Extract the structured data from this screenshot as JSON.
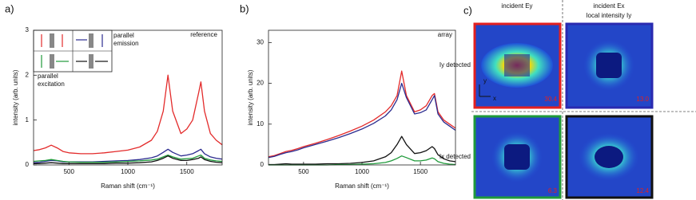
{
  "chart_data": [
    {
      "type": "line",
      "panel_label": "a)",
      "xlabel": "Raman shift (cm⁻¹)",
      "ylabel": "intensity (arb. units)",
      "xlim": [
        200,
        1800
      ],
      "xticks": [
        500,
        1000,
        1500
      ],
      "ylim": [
        0,
        3
      ],
      "yticks": [
        0,
        1,
        2,
        3
      ],
      "annotations": [
        [
          "reference"
        ],
        [
          "parallel",
          "emission"
        ],
        [
          "parallel",
          "excitation"
        ]
      ],
      "x": [
        200,
        250,
        300,
        350,
        400,
        450,
        500,
        600,
        700,
        800,
        900,
        1000,
        1100,
        1200,
        1250,
        1300,
        1340,
        1380,
        1450,
        1500,
        1550,
        1600,
        1620,
        1650,
        1700,
        1750,
        1800
      ],
      "series": [
        {
          "color": "#e32b2b",
          "values": [
            0.32,
            0.34,
            0.38,
            0.44,
            0.38,
            0.3,
            0.27,
            0.25,
            0.25,
            0.27,
            0.3,
            0.33,
            0.4,
            0.55,
            0.75,
            1.2,
            2.0,
            1.2,
            0.7,
            0.8,
            1.0,
            1.6,
            1.85,
            1.2,
            0.7,
            0.55,
            0.45
          ]
        },
        {
          "color": "#2b2b8f",
          "values": [
            0.05,
            0.06,
            0.08,
            0.1,
            0.09,
            0.07,
            0.07,
            0.07,
            0.07,
            0.08,
            0.09,
            0.1,
            0.12,
            0.16,
            0.2,
            0.28,
            0.35,
            0.28,
            0.2,
            0.22,
            0.25,
            0.32,
            0.35,
            0.25,
            0.18,
            0.15,
            0.13
          ]
        },
        {
          "color": "#1f9a3a",
          "values": [
            0.08,
            0.09,
            0.1,
            0.12,
            0.1,
            0.08,
            0.07,
            0.06,
            0.06,
            0.06,
            0.07,
            0.08,
            0.09,
            0.11,
            0.13,
            0.18,
            0.22,
            0.18,
            0.13,
            0.14,
            0.15,
            0.2,
            0.22,
            0.15,
            0.11,
            0.09,
            0.08
          ]
        },
        {
          "color": "#111111",
          "values": [
            0.03,
            0.03,
            0.04,
            0.05,
            0.04,
            0.03,
            0.03,
            0.03,
            0.03,
            0.03,
            0.04,
            0.04,
            0.05,
            0.07,
            0.1,
            0.15,
            0.2,
            0.15,
            0.1,
            0.1,
            0.12,
            0.15,
            0.18,
            0.12,
            0.08,
            0.06,
            0.05
          ]
        }
      ]
    },
    {
      "type": "line",
      "panel_label": "b)",
      "xlabel": "Raman shift (cm⁻¹)",
      "ylabel": "intensity (arb. units)",
      "xlim": [
        200,
        1800
      ],
      "xticks": [
        500,
        1000,
        1500
      ],
      "ylim": [
        0,
        33
      ],
      "yticks": [
        0,
        10,
        20,
        30
      ],
      "annotations": [
        [
          "array"
        ]
      ],
      "x": [
        200,
        250,
        300,
        350,
        400,
        450,
        500,
        600,
        700,
        800,
        900,
        1000,
        1100,
        1200,
        1250,
        1300,
        1340,
        1380,
        1450,
        1500,
        1550,
        1600,
        1620,
        1650,
        1700,
        1750,
        1800
      ],
      "series": [
        {
          "color": "#e32b2b",
          "values": [
            2,
            2.3,
            2.8,
            3.3,
            3.6,
            4,
            4.5,
            5.3,
            6.2,
            7.2,
            8.3,
            9.5,
            11,
            13,
            14.5,
            17,
            23,
            17,
            13,
            13.5,
            14.5,
            17,
            17.5,
            13,
            11,
            10,
            9
          ]
        },
        {
          "color": "#2b2b8f",
          "values": [
            1.8,
            2.1,
            2.6,
            3,
            3.3,
            3.7,
            4.2,
            5,
            5.8,
            6.7,
            7.7,
            8.8,
            10.2,
            12,
            13.5,
            16,
            20,
            16.5,
            12.5,
            12.8,
            13.5,
            16,
            17,
            12.5,
            10.5,
            9.5,
            8.5
          ]
        },
        {
          "color": "#111111",
          "values": [
            0.1,
            0.1,
            0.2,
            0.3,
            0.2,
            0.2,
            0.2,
            0.2,
            0.3,
            0.3,
            0.4,
            0.6,
            1,
            2,
            3,
            5,
            7,
            5,
            2.8,
            3,
            3.5,
            4.5,
            4,
            2.5,
            1.5,
            1,
            0.8
          ]
        },
        {
          "color": "#1f9a3a",
          "values": [
            0,
            0,
            0,
            0,
            0,
            0,
            0,
            0,
            0,
            0.1,
            0.1,
            0.2,
            0.3,
            0.6,
            1,
            1.6,
            2.2,
            1.8,
            1,
            1,
            1.2,
            1.7,
            1.5,
            0.8,
            0.4,
            0.2,
            0.1
          ]
        }
      ]
    }
  ],
  "panel_c": {
    "label": "c)",
    "columns": [
      "incident Ey",
      "incident Ex"
    ],
    "subtitle": "local intensity Iy",
    "rows": [
      "Iy detected",
      "Ix detected"
    ],
    "maxima": [
      "30.4",
      "13.0",
      "6.3",
      "12.4"
    ],
    "axes": [
      "y",
      "x"
    ]
  }
}
